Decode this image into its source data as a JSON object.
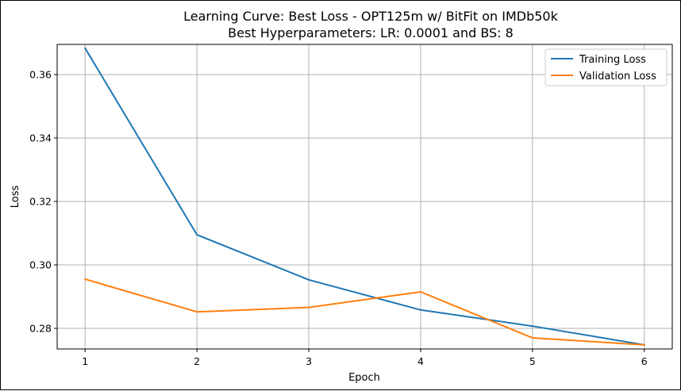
{
  "chart_data": {
    "type": "line",
    "title": "Learning Curve: Best Loss - OPT125m w/ BitFit on IMDb50k",
    "subtitle": "Best Hyperparameters: LR: 0.0001 and BS: 8",
    "xlabel": "Epoch",
    "ylabel": "Loss",
    "x": [
      1,
      2,
      3,
      4,
      5,
      6
    ],
    "xticks": [
      "1",
      "2",
      "3",
      "4",
      "5",
      "6"
    ],
    "yticks": [
      "0.28",
      "0.30",
      "0.32",
      "0.34",
      "0.36"
    ],
    "xlim": [
      0.75,
      6.25
    ],
    "ylim": [
      0.2735,
      0.3695
    ],
    "grid": true,
    "legend_position": "top-right",
    "series": [
      {
        "name": "Training Loss",
        "color": "#1f77b4",
        "values": [
          0.3683,
          0.3095,
          0.2953,
          0.2858,
          0.2807,
          0.2748
        ]
      },
      {
        "name": "Validation Loss",
        "color": "#ff7f0e",
        "values": [
          0.2955,
          0.2852,
          0.2866,
          0.2915,
          0.277,
          0.2748
        ]
      }
    ]
  }
}
